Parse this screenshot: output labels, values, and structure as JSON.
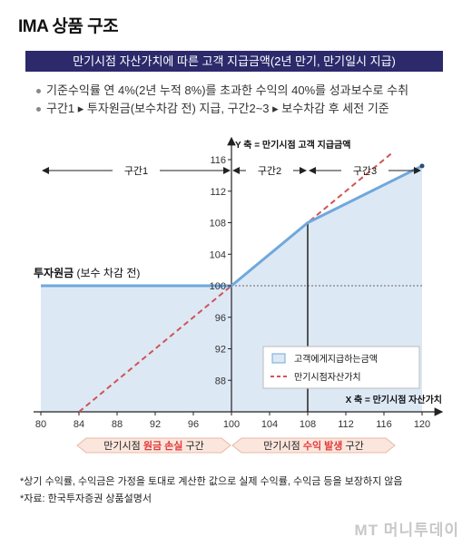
{
  "title": "IMA 상품 구조",
  "banner": "만기시점 자산가치에 따른 고객 지급금액(2년 만기, 만기일시 지급)",
  "bullets": [
    "기준수익률 연 4%(2년 누적 8%)를 초과한 수익의 40%를 성과보수로 수취",
    "구간1 ▸ 투자원금(보수차감 전) 지급, 구간2~3 ▸ 보수차감 후 세전 기준"
  ],
  "footnotes": [
    "*상기 수익률, 수익금은 가정을 토대로 계산한 값으로 실제 수익률, 수익금 등을 보장하지 않음",
    "*자료: 한국투자증권 상품설명서"
  ],
  "brand": "MT 머니투데이",
  "chart_data": {
    "type": "area",
    "ylabel": "Y 축 = 만기시점 고객 지급금액",
    "xlabel": "X 축 = 만기시점 자산가치",
    "xlim": [
      80,
      120
    ],
    "ylim": [
      84,
      116
    ],
    "x_ticks": [
      "80",
      "84",
      "88",
      "92",
      "96",
      "100",
      "104",
      "108",
      "112",
      "116",
      "120"
    ],
    "y_ticks": [
      "88",
      "92",
      "96",
      "100",
      "104",
      "108",
      "112",
      "116"
    ],
    "series": [
      {
        "name": "고객에게지급하는금액",
        "x": [
          80,
          100,
          108,
          120
        ],
        "values": [
          100,
          100,
          108,
          115.2
        ]
      },
      {
        "name": "만기시점자산가치",
        "x": [
          84,
          117
        ],
        "values": [
          84,
          117
        ]
      }
    ],
    "zones": [
      {
        "label": "구간1",
        "from": 80,
        "to": 100
      },
      {
        "label": "구간2",
        "from": 100,
        "to": 108
      },
      {
        "label": "구간3",
        "from": 108,
        "to": 120
      }
    ],
    "principal_label": "투자원금",
    "principal_note": "(보수 차감 전)",
    "principal_value": 100,
    "bottom_arrows": [
      {
        "prefix": "만기시점",
        "highlight": "원금 손실",
        "suffix": "구간"
      },
      {
        "prefix": "만기시점",
        "highlight": "수익 발생",
        "suffix": "구간"
      }
    ],
    "colors": {
      "fill": "#dde8f5",
      "payout": "#6fa8dc",
      "diagonal": "#d05555",
      "highlight": "#e23a3a"
    }
  }
}
